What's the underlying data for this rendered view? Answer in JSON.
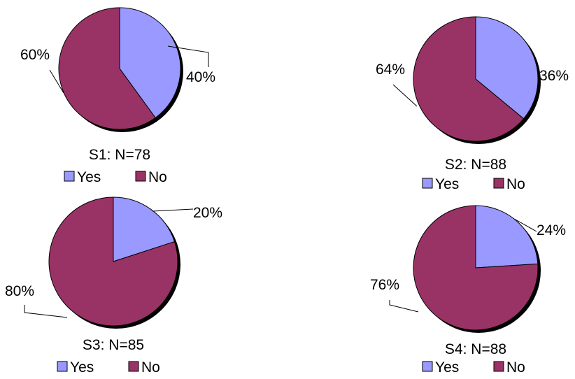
{
  "colors": {
    "yes": "#9999FF",
    "no": "#993366",
    "outline": "#000000"
  },
  "legend": {
    "yes_label": "Yes",
    "no_label": "No"
  },
  "chart_data": [
    {
      "type": "pie",
      "title": "S1: N=78",
      "categories": [
        "Yes",
        "No"
      ],
      "values": [
        40,
        60
      ],
      "labels": [
        "40%",
        "60%"
      ]
    },
    {
      "type": "pie",
      "title": "S2: N=88",
      "categories": [
        "Yes",
        "No"
      ],
      "values": [
        36,
        64
      ],
      "labels": [
        "36%",
        "64%"
      ]
    },
    {
      "type": "pie",
      "title": "S3: N=85",
      "categories": [
        "Yes",
        "No"
      ],
      "values": [
        20,
        80
      ],
      "labels": [
        "20%",
        "80%"
      ]
    },
    {
      "type": "pie",
      "title": "S4: N=88",
      "categories": [
        "Yes",
        "No"
      ],
      "values": [
        24,
        76
      ],
      "labels": [
        "24%",
        "76%"
      ]
    }
  ]
}
